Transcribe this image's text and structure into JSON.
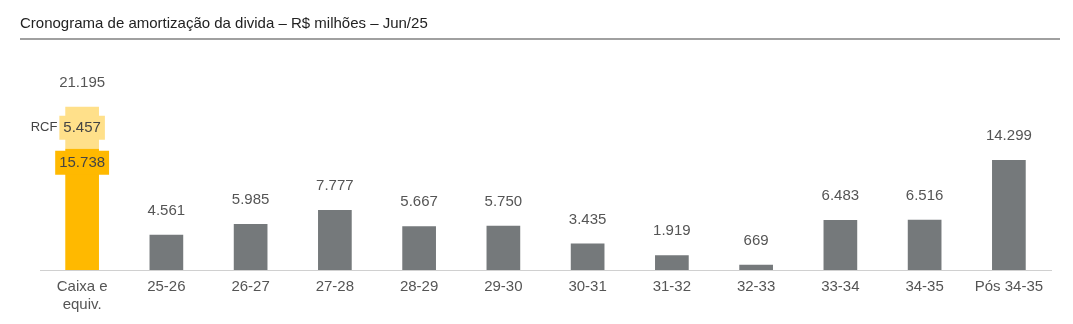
{
  "chart_data": {
    "type": "bar",
    "title": "Cronograma de amortização da divida – R$ milhões – Jun/25",
    "categories": [
      "Caixa e equiv.",
      "25-26",
      "26-27",
      "27-28",
      "28-29",
      "29-30",
      "30-31",
      "31-32",
      "32-33",
      "33-34",
      "34-35",
      "Pós 34-35"
    ],
    "stacked": true,
    "grid": false,
    "tick_labels": "x",
    "series": [
      {
        "colors": [
          "#ffb900",
          "#75797b",
          "#75797b",
          "#75797b",
          "#75797b",
          "#75797b",
          "#75797b",
          "#75797b",
          "#75797b",
          "#75797b",
          "#75797b",
          "#75797b"
        ],
        "values": [
          15738,
          4561,
          5985,
          7777,
          5667,
          5750,
          3435,
          1919,
          669,
          6483,
          6516,
          14299
        ],
        "value_labels": [
          "15.738",
          "4.561",
          "5.985",
          "7.777",
          "5.667",
          "5.750",
          "3.435",
          "1.919",
          "669",
          "6.483",
          "6.516",
          "14.299"
        ]
      },
      {
        "name": "RCF",
        "color": "#ffe08a",
        "values": [
          5457,
          null,
          null,
          null,
          null,
          null,
          null,
          null,
          null,
          null,
          null,
          null
        ],
        "value_labels": [
          "5.457",
          null,
          null,
          null,
          null,
          null,
          null,
          null,
          null,
          null,
          null,
          null
        ]
      }
    ],
    "totals": [
      "21.195",
      null,
      null,
      null,
      null,
      null,
      null,
      null,
      null,
      null,
      null,
      null
    ]
  }
}
